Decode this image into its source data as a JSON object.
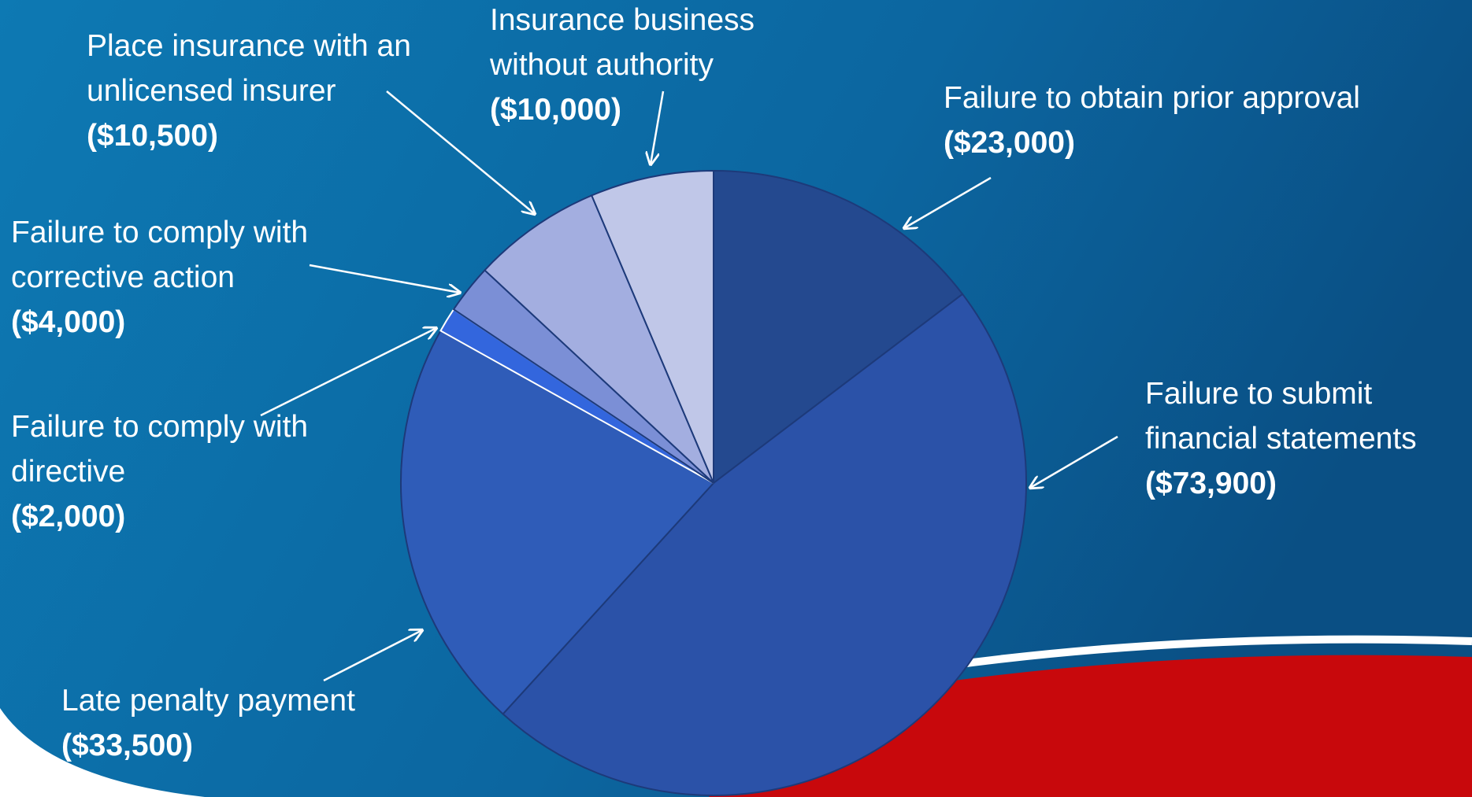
{
  "chart_data": {
    "type": "pie",
    "categories": [
      "Failure to obtain prior approval",
      "Failure to submit financial statements",
      "Late penalty payment",
      "Failure to comply with directive",
      "Failure to comply with corrective action",
      "Place insurance with an unlicensed insurer",
      "Insurance business without authority"
    ],
    "values": [
      23000,
      73900,
      33500,
      2000,
      4000,
      10500,
      10000
    ],
    "value_labels": [
      "($23,000)",
      "($73,900)",
      "($33,500)",
      "($2,000)",
      "($4,000)",
      "($10,500)",
      "($10,000)"
    ],
    "colors": [
      "#24498f",
      "#2b52a8",
      "#2f5cb8",
      "#3366dd",
      "#7b8fd6",
      "#a3aee0",
      "#c0c7e8"
    ]
  }
}
